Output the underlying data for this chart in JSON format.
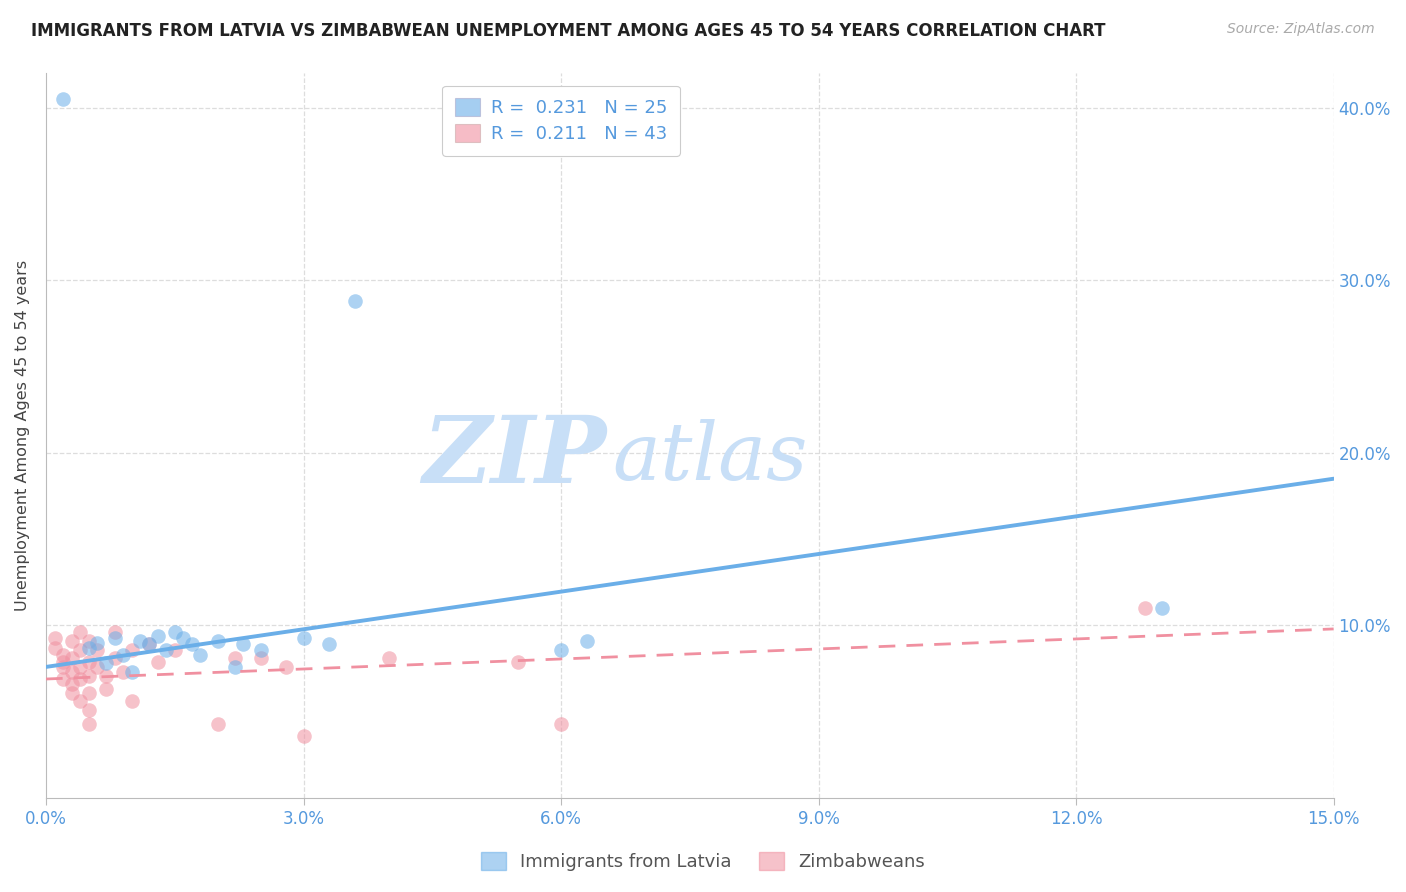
{
  "title": "IMMIGRANTS FROM LATVIA VS ZIMBABWEAN UNEMPLOYMENT AMONG AGES 45 TO 54 YEARS CORRELATION CHART",
  "source": "Source: ZipAtlas.com",
  "ylabel": "Unemployment Among Ages 45 to 54 years",
  "xmin": 0.0,
  "xmax": 0.15,
  "ymin": 0.0,
  "ymax": 0.42,
  "yticks": [
    0.1,
    0.2,
    0.3,
    0.4
  ],
  "xticks": [
    0.0,
    0.03,
    0.06,
    0.09,
    0.12,
    0.15
  ],
  "xtick_labels": [
    "0.0%",
    "3.0%",
    "6.0%",
    "9.0%",
    "12.0%",
    "15.0%"
  ],
  "ytick_labels_right": [
    "10.0%",
    "20.0%",
    "30.0%",
    "40.0%"
  ],
  "legend_r_values": [
    "0.231",
    "0.211"
  ],
  "legend_n_values": [
    "25",
    "43"
  ],
  "blue_color": "#6aaee8",
  "pink_color": "#f090a0",
  "blue_scatter": [
    [
      0.002,
      0.405
    ],
    [
      0.005,
      0.087
    ],
    [
      0.006,
      0.09
    ],
    [
      0.007,
      0.078
    ],
    [
      0.008,
      0.093
    ],
    [
      0.009,
      0.083
    ],
    [
      0.01,
      0.073
    ],
    [
      0.011,
      0.091
    ],
    [
      0.012,
      0.089
    ],
    [
      0.013,
      0.094
    ],
    [
      0.014,
      0.086
    ],
    [
      0.015,
      0.096
    ],
    [
      0.016,
      0.093
    ],
    [
      0.017,
      0.089
    ],
    [
      0.018,
      0.083
    ],
    [
      0.02,
      0.091
    ],
    [
      0.022,
      0.076
    ],
    [
      0.023,
      0.089
    ],
    [
      0.025,
      0.086
    ],
    [
      0.03,
      0.093
    ],
    [
      0.033,
      0.089
    ],
    [
      0.036,
      0.288
    ],
    [
      0.06,
      0.086
    ],
    [
      0.063,
      0.091
    ],
    [
      0.13,
      0.11
    ]
  ],
  "pink_scatter": [
    [
      0.001,
      0.087
    ],
    [
      0.001,
      0.093
    ],
    [
      0.002,
      0.083
    ],
    [
      0.002,
      0.076
    ],
    [
      0.002,
      0.079
    ],
    [
      0.002,
      0.069
    ],
    [
      0.003,
      0.091
    ],
    [
      0.003,
      0.081
    ],
    [
      0.003,
      0.073
    ],
    [
      0.003,
      0.066
    ],
    [
      0.003,
      0.061
    ],
    [
      0.004,
      0.096
    ],
    [
      0.004,
      0.086
    ],
    [
      0.004,
      0.076
    ],
    [
      0.004,
      0.069
    ],
    [
      0.004,
      0.056
    ],
    [
      0.005,
      0.091
    ],
    [
      0.005,
      0.079
    ],
    [
      0.005,
      0.071
    ],
    [
      0.005,
      0.061
    ],
    [
      0.005,
      0.051
    ],
    [
      0.005,
      0.043
    ],
    [
      0.006,
      0.086
    ],
    [
      0.006,
      0.076
    ],
    [
      0.007,
      0.071
    ],
    [
      0.007,
      0.063
    ],
    [
      0.008,
      0.096
    ],
    [
      0.008,
      0.081
    ],
    [
      0.009,
      0.073
    ],
    [
      0.01,
      0.086
    ],
    [
      0.01,
      0.056
    ],
    [
      0.012,
      0.089
    ],
    [
      0.013,
      0.079
    ],
    [
      0.015,
      0.086
    ],
    [
      0.02,
      0.043
    ],
    [
      0.022,
      0.081
    ],
    [
      0.025,
      0.081
    ],
    [
      0.028,
      0.076
    ],
    [
      0.03,
      0.036
    ],
    [
      0.04,
      0.081
    ],
    [
      0.055,
      0.079
    ],
    [
      0.06,
      0.043
    ],
    [
      0.128,
      0.11
    ]
  ],
  "blue_line_x": [
    0.0,
    0.15
  ],
  "blue_line_y": [
    0.076,
    0.185
  ],
  "pink_line_x": [
    0.0,
    0.15
  ],
  "pink_line_y": [
    0.069,
    0.098
  ],
  "watermark_zip": "ZIP",
  "watermark_atlas": "atlas",
  "watermark_color_zip": "#c8dff7",
  "watermark_color_atlas": "#c8dff7",
  "legend_label_blue": "Immigrants from Latvia",
  "legend_label_pink": "Zimbabweans",
  "grid_color": "#dddddd",
  "title_fontsize": 12,
  "source_fontsize": 10
}
